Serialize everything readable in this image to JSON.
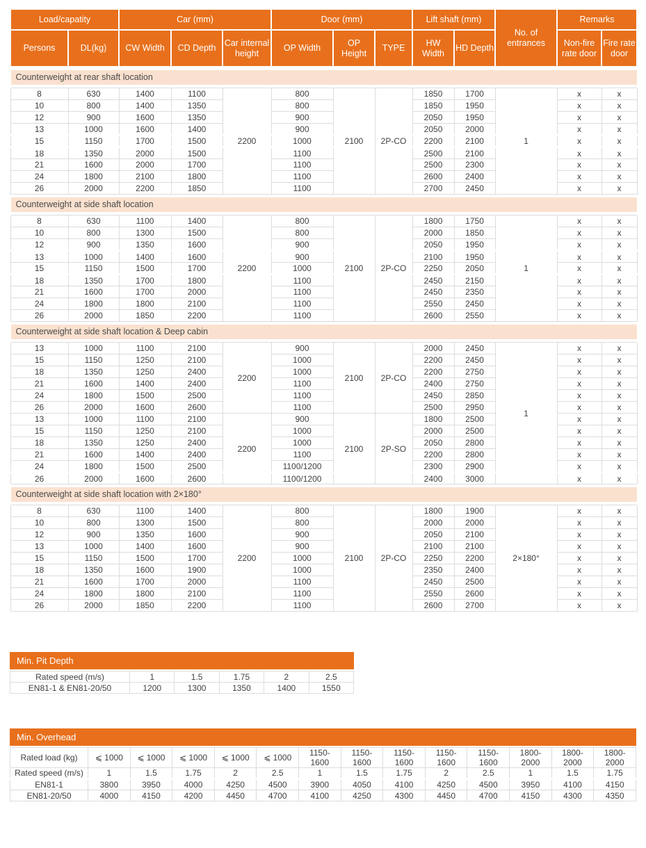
{
  "colors": {
    "header_orange": "#e8701c",
    "section_band_bg": "#fae1cf",
    "grid_line": "#dcdcdc",
    "text": "#3f3f3f"
  },
  "main_table": {
    "group_headers": [
      "Load/capatity",
      "Car (mm)",
      "Door (mm)",
      "Lift shaft (mm)",
      "No. of entrances",
      "Remarks"
    ],
    "column_headers": [
      "Persons",
      "DL(kg)",
      "CW Width",
      "CD Depth",
      "Car internal height",
      "OP Width",
      "OP Height",
      "TYPE",
      "HW Width",
      "HD Depth",
      "Non-fire rate door",
      "Fire rate door"
    ],
    "row_columns": [
      "persons",
      "dl_kg",
      "cw_width",
      "cd_depth",
      "op_width",
      "hw_width",
      "hd_depth",
      "non_fire_rate_door",
      "fire_rate_door"
    ],
    "sections": [
      {
        "title": "Counterweight at rear shaft location",
        "entrances": "1",
        "breaks_after": [
          3,
          4
        ],
        "subgroups": [
          {
            "car_internal_height": "2200",
            "op_height": "2100",
            "door_type": "2P-CO",
            "rows": [
              [
                "8",
                "630",
                "1400",
                "1100",
                "800",
                "1850",
                "1700",
                "x",
                "x"
              ],
              [
                "10",
                "800",
                "1400",
                "1350",
                "800",
                "1850",
                "1950",
                "x",
                "x"
              ],
              [
                "12",
                "900",
                "1600",
                "1350",
                "900",
                "2050",
                "1950",
                "x",
                "x"
              ],
              [
                "13",
                "1000",
                "1600",
                "1400",
                "900",
                "2050",
                "2000",
                "x",
                "x"
              ],
              [
                "15",
                "1150",
                "1700",
                "1500",
                "1000",
                "2200",
                "2100",
                "x",
                "x"
              ],
              [
                "18",
                "1350",
                "2000",
                "1500",
                "1100",
                "2500",
                "2100",
                "x",
                "x"
              ],
              [
                "21",
                "1600",
                "2000",
                "1700",
                "1100",
                "2500",
                "2300",
                "x",
                "x"
              ],
              [
                "24",
                "1800",
                "2100",
                "1800",
                "1100",
                "2600",
                "2400",
                "x",
                "x"
              ],
              [
                "26",
                "2000",
                "2200",
                "1850",
                "1100",
                "2700",
                "2450",
                "x",
                "x"
              ]
            ]
          }
        ]
      },
      {
        "title": "Counterweight at side shaft location",
        "entrances": "1",
        "breaks_after": [
          2,
          4
        ],
        "subgroups": [
          {
            "car_internal_height": "2200",
            "op_height": "2100",
            "door_type": "2P-CO",
            "rows": [
              [
                "8",
                "630",
                "1100",
                "1400",
                "800",
                "1800",
                "1750",
                "x",
                "x"
              ],
              [
                "10",
                "800",
                "1300",
                "1500",
                "800",
                "2000",
                "1850",
                "x",
                "x"
              ],
              [
                "12",
                "900",
                "1350",
                "1600",
                "900",
                "2050",
                "1950",
                "x",
                "x"
              ],
              [
                "13",
                "1000",
                "1400",
                "1600",
                "900",
                "2100",
                "1950",
                "x",
                "x"
              ],
              [
                "15",
                "1150",
                "1500",
                "1700",
                "1000",
                "2250",
                "2050",
                "x",
                "x"
              ],
              [
                "18",
                "1350",
                "1700",
                "1800",
                "1100",
                "2450",
                "2150",
                "x",
                "x"
              ],
              [
                "21",
                "1600",
                "1700",
                "2000",
                "1100",
                "2450",
                "2350",
                "x",
                "x"
              ],
              [
                "24",
                "1800",
                "1800",
                "2100",
                "1100",
                "2550",
                "2450",
                "x",
                "x"
              ],
              [
                "26",
                "2000",
                "1850",
                "2200",
                "1100",
                "2600",
                "2550",
                "x",
                "x"
              ]
            ]
          }
        ]
      },
      {
        "title": "Counterweight at side shaft location & Deep cabin",
        "entrances": "1",
        "breaks_after": [
          10
        ],
        "subgroups": [
          {
            "car_internal_height": "2200",
            "op_height": "2100",
            "door_type": "2P-CO",
            "rows": [
              [
                "13",
                "1000",
                "1100",
                "2100",
                "900",
                "2000",
                "2450",
                "x",
                "x"
              ],
              [
                "15",
                "1150",
                "1250",
                "2100",
                "1000",
                "2200",
                "2450",
                "x",
                "x"
              ],
              [
                "18",
                "1350",
                "1250",
                "2400",
                "1000",
                "2200",
                "2750",
                "x",
                "x"
              ],
              [
                "21",
                "1600",
                "1400",
                "2400",
                "1100",
                "2400",
                "2750",
                "x",
                "x"
              ],
              [
                "24",
                "1800",
                "1500",
                "2500",
                "1100",
                "2450",
                "2850",
                "x",
                "x"
              ],
              [
                "26",
                "2000",
                "1600",
                "2600",
                "1100",
                "2500",
                "2950",
                "x",
                "x"
              ]
            ]
          },
          {
            "car_internal_height": "2200",
            "op_height": "2100",
            "door_type": "2P-SO",
            "rows": [
              [
                "13",
                "1000",
                "1100",
                "2100",
                "900",
                "1800",
                "2500",
                "x",
                "x"
              ],
              [
                "15",
                "1150",
                "1250",
                "2100",
                "1000",
                "2000",
                "2500",
                "x",
                "x"
              ],
              [
                "18",
                "1350",
                "1250",
                "2400",
                "1000",
                "2050",
                "2800",
                "x",
                "x"
              ],
              [
                "21",
                "1600",
                "1400",
                "2400",
                "1100",
                "2200",
                "2800",
                "x",
                "x"
              ],
              [
                "24",
                "1800",
                "1500",
                "2500",
                "1100/1200",
                "2300",
                "2900",
                "x",
                "x"
              ],
              [
                "26",
                "2000",
                "1600",
                "2600",
                "1100/1200",
                "2400",
                "3000",
                "x",
                "x"
              ]
            ]
          }
        ]
      },
      {
        "title": "Counterweight at side shaft location with 2×180°",
        "entrances": "2×180°",
        "breaks_after": [],
        "subgroups": [
          {
            "car_internal_height": "2200",
            "op_height": "2100",
            "door_type": "2P-CO",
            "rows": [
              [
                "8",
                "630",
                "1100",
                "1400",
                "800",
                "1800",
                "1900",
                "x",
                "x"
              ],
              [
                "10",
                "800",
                "1300",
                "1500",
                "800",
                "2000",
                "2000",
                "x",
                "x"
              ],
              [
                "12",
                "900",
                "1350",
                "1600",
                "900",
                "2050",
                "2100",
                "x",
                "x"
              ],
              [
                "13",
                "1000",
                "1400",
                "1600",
                "900",
                "2100",
                "2100",
                "x",
                "x"
              ],
              [
                "15",
                "1150",
                "1500",
                "1700",
                "1000",
                "2250",
                "2200",
                "x",
                "x"
              ],
              [
                "18",
                "1350",
                "1600",
                "1900",
                "1000",
                "2350",
                "2400",
                "x",
                "x"
              ],
              [
                "21",
                "1600",
                "1700",
                "2000",
                "1100",
                "2450",
                "2500",
                "x",
                "x"
              ],
              [
                "24",
                "1800",
                "1800",
                "2100",
                "1100",
                "2550",
                "2600",
                "x",
                "x"
              ],
              [
                "26",
                "2000",
                "1850",
                "2200",
                "1100",
                "2600",
                "2700",
                "x",
                "x"
              ]
            ]
          }
        ]
      }
    ]
  },
  "pit_depth": {
    "title": "Min. Pit Depth",
    "rows": [
      [
        "Rated speed (m/s)",
        "1",
        "1.5",
        "1.75",
        "2",
        "2.5"
      ],
      [
        "EN81-1 & EN81-20/50",
        "1200",
        "1300",
        "1350",
        "1400",
        "1550"
      ]
    ]
  },
  "min_overhead": {
    "title": "Min. Overhead",
    "breaks_after": [
      1
    ],
    "rows": [
      [
        "Rated load (kg)",
        "⩽ 1000",
        "⩽ 1000",
        "⩽ 1000",
        "⩽ 1000",
        "⩽ 1000",
        "1150-1600",
        "1150-1600",
        "1150-1600",
        "1150-1600",
        "1150-1600",
        "1800-2000",
        "1800-2000",
        "1800-2000"
      ],
      [
        "Rated speed (m/s)",
        "1",
        "1.5",
        "1.75",
        "2",
        "2.5",
        "1",
        "1.5",
        "1.75",
        "2",
        "2.5",
        "1",
        "1.5",
        "1.75"
      ],
      [
        "EN81-1",
        "3800",
        "3950",
        "4000",
        "4250",
        "4500",
        "3900",
        "4050",
        "4100",
        "4250",
        "4500",
        "3950",
        "4100",
        "4150"
      ],
      [
        "EN81-20/50",
        "4000",
        "4150",
        "4200",
        "4450",
        "4700",
        "4100",
        "4250",
        "4300",
        "4450",
        "4700",
        "4150",
        "4300",
        "4350"
      ]
    ]
  }
}
